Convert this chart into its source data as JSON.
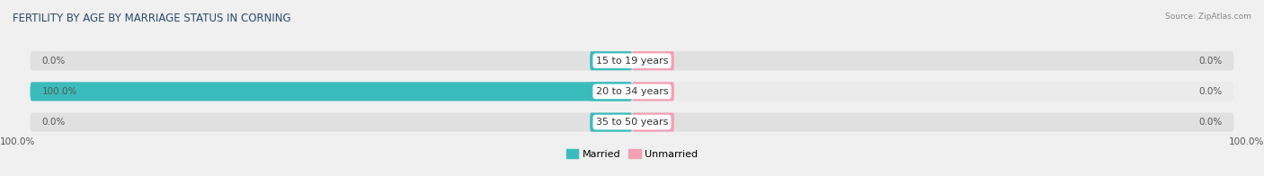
{
  "title": "FERTILITY BY AGE BY MARRIAGE STATUS IN CORNING",
  "source": "Source: ZipAtlas.com",
  "categories": [
    "15 to 19 years",
    "20 to 34 years",
    "35 to 50 years"
  ],
  "married_values": [
    0.0,
    100.0,
    0.0
  ],
  "unmarried_values": [
    0.0,
    0.0,
    0.0
  ],
  "married_color": "#3bbcbc",
  "unmarried_color": "#f5a0b5",
  "bar_bg_color": "#e0e0e0",
  "bar_bg_color2": "#ebebeb",
  "figsize": [
    14.06,
    1.96
  ],
  "dpi": 100,
  "title_fontsize": 8.5,
  "label_fontsize": 7.5,
  "source_fontsize": 6.5,
  "legend_fontsize": 8,
  "left_axis_label": "100.0%",
  "right_axis_label": "100.0%",
  "background_color": "#f0f0f0",
  "title_color": "#2b4a6b",
  "label_color": "#555555"
}
